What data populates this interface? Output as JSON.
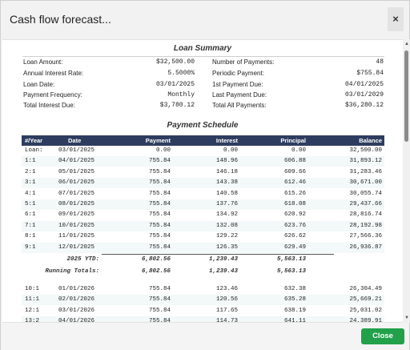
{
  "dialog": {
    "title": "Cash flow forecast...",
    "close_glyph": "×",
    "close_button_label": "Close",
    "accent_color": "#22a04a",
    "header_color": "#2e3d5f"
  },
  "loan_summary": {
    "title": "Loan Summary",
    "left": [
      {
        "label": "Loan Amount:",
        "value": "$32,500.00"
      },
      {
        "label": "Annual Interest Rate:",
        "value": "5.5000%"
      },
      {
        "label": "Loan Date:",
        "value": "03/01/2025"
      },
      {
        "label": "Payment Frequency:",
        "value": "Monthly"
      },
      {
        "label": "Total Interest Due:",
        "value": "$3,780.12"
      }
    ],
    "right": [
      {
        "label": "Number of Payments:",
        "value": "48"
      },
      {
        "label": "Periodic Payment:",
        "value": "$755.84"
      },
      {
        "label": "1st Payment Due:",
        "value": "04/01/2025"
      },
      {
        "label": "Last Payment Due:",
        "value": "03/01/2029"
      },
      {
        "label": "Total All Payments:",
        "value": "$36,280.12"
      }
    ]
  },
  "schedule": {
    "title": "Payment Schedule",
    "columns": [
      "#/Year",
      "Date",
      "Payment",
      "Interest",
      "Principal",
      "Balance"
    ],
    "rows_2025": [
      [
        "Loan:",
        "03/01/2025",
        "0.00",
        "0.00",
        "0.00",
        "32,500.00"
      ],
      [
        "1:1",
        "04/01/2025",
        "755.84",
        "148.96",
        "606.88",
        "31,893.12"
      ],
      [
        "2:1",
        "05/01/2025",
        "755.84",
        "146.18",
        "609.66",
        "31,283.46"
      ],
      [
        "3:1",
        "06/01/2025",
        "755.84",
        "143.38",
        "612.46",
        "30,671.00"
      ],
      [
        "4:1",
        "07/01/2025",
        "755.84",
        "140.58",
        "615.26",
        "30,055.74"
      ],
      [
        "5:1",
        "08/01/2025",
        "755.84",
        "137.76",
        "618.08",
        "29,437.66"
      ],
      [
        "6:1",
        "09/01/2025",
        "755.84",
        "134.92",
        "620.92",
        "28,816.74"
      ],
      [
        "7:1",
        "10/01/2025",
        "755.84",
        "132.08",
        "623.76",
        "28,192.98"
      ],
      [
        "8:1",
        "11/01/2025",
        "755.84",
        "129.22",
        "626.62",
        "27,566.36"
      ],
      [
        "9:1",
        "12/01/2025",
        "755.84",
        "126.35",
        "629.49",
        "26,936.87"
      ]
    ],
    "ytd": {
      "label": "2025 YTD:",
      "payment": "6,802.56",
      "interest": "1,239.43",
      "principal": "5,563.13"
    },
    "running": {
      "label": "Running Totals:",
      "payment": "6,802.56",
      "interest": "1,239.43",
      "principal": "5,563.13"
    },
    "rows_2026": [
      [
        "10:1",
        "01/01/2026",
        "755.84",
        "123.46",
        "632.38",
        "26,304.49"
      ],
      [
        "11:1",
        "02/01/2026",
        "755.84",
        "120.56",
        "635.28",
        "25,669.21"
      ],
      [
        "12:1",
        "03/01/2026",
        "755.84",
        "117.65",
        "638.19",
        "25,031.02"
      ],
      [
        "13:2",
        "04/01/2026",
        "755.84",
        "114.73",
        "641.11",
        "24,389.91"
      ]
    ]
  }
}
